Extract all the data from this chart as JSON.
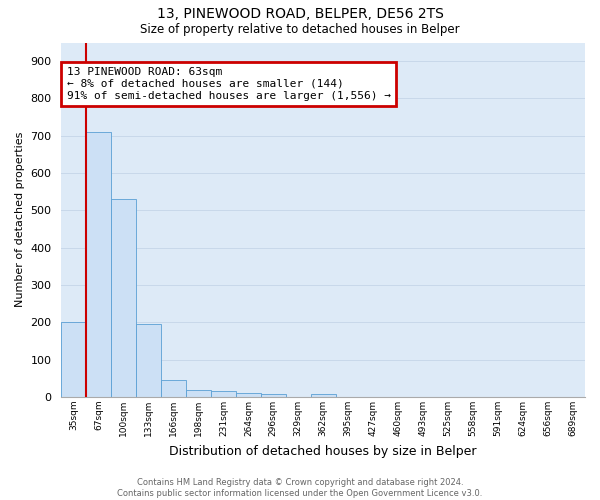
{
  "title1": "13, PINEWOOD ROAD, BELPER, DE56 2TS",
  "title2": "Size of property relative to detached houses in Belper",
  "xlabel": "Distribution of detached houses by size in Belper",
  "ylabel": "Number of detached properties",
  "footer1": "Contains HM Land Registry data © Crown copyright and database right 2024.",
  "footer2": "Contains public sector information licensed under the Open Government Licence v3.0.",
  "annotation_line1": "13 PINEWOOD ROAD: 63sqm",
  "annotation_line2": "← 8% of detached houses are smaller (144)",
  "annotation_line3": "91% of semi-detached houses are larger (1,556) →",
  "bar_color": "#cce0f5",
  "bar_edgecolor": "#5a9fd4",
  "vline_color": "#cc0000",
  "annotation_box_edgecolor": "#cc0000",
  "categories": [
    "35sqm",
    "67sqm",
    "100sqm",
    "133sqm",
    "166sqm",
    "198sqm",
    "231sqm",
    "264sqm",
    "296sqm",
    "329sqm",
    "362sqm",
    "395sqm",
    "427sqm",
    "460sqm",
    "493sqm",
    "525sqm",
    "558sqm",
    "591sqm",
    "624sqm",
    "656sqm",
    "689sqm"
  ],
  "values": [
    200,
    710,
    530,
    195,
    45,
    20,
    15,
    12,
    8,
    0,
    8,
    0,
    0,
    0,
    0,
    0,
    0,
    0,
    0,
    0,
    0
  ],
  "vline_bin_index": 1,
  "ylim": [
    0,
    950
  ],
  "yticks": [
    0,
    100,
    200,
    300,
    400,
    500,
    600,
    700,
    800,
    900
  ],
  "grid_color": "#c8d8ea",
  "bg_color": "#ddeaf7",
  "title1_fontsize": 10,
  "title2_fontsize": 8.5,
  "ylabel_fontsize": 8,
  "xlabel_fontsize": 9,
  "xtick_fontsize": 6.5,
  "ytick_fontsize": 8,
  "annotation_fontsize": 8,
  "footer_fontsize": 6
}
